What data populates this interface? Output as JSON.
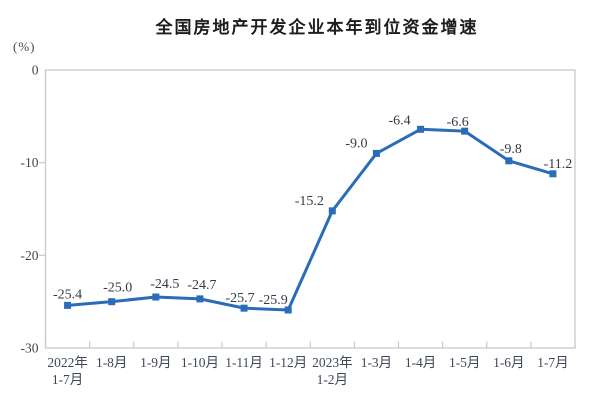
{
  "chart_data": {
    "type": "line",
    "title": "全国房地产开发企业本年到位资金增速",
    "ylabel": "(%)",
    "xlabel": "",
    "categories": [
      [
        "2022年",
        "1-7月"
      ],
      [
        "1-8月"
      ],
      [
        "1-9月"
      ],
      [
        "1-10月"
      ],
      [
        "1-11月"
      ],
      [
        "1-12月"
      ],
      [
        "2023年",
        "1-2月"
      ],
      [
        "1-3月"
      ],
      [
        "1-4月"
      ],
      [
        "1-5月"
      ],
      [
        "1-6月"
      ],
      [
        "1-7月"
      ]
    ],
    "values": [
      -25.4,
      -25.0,
      -24.5,
      -24.7,
      -25.7,
      -25.9,
      -15.2,
      -9.0,
      -6.4,
      -6.6,
      -9.8,
      -11.2
    ],
    "point_labels": [
      "-25.4",
      "-25.0",
      "-24.5",
      "-24.7",
      "-25.7",
      "-25.9",
      "-15.2",
      "-9.0",
      "-6.4",
      "-6.6",
      "-9.8",
      "-11.2"
    ],
    "y_ticks": [
      "0",
      "-10",
      "-20",
      "-30"
    ],
    "ylim": [
      -30,
      0
    ],
    "grid": false,
    "legend": "none",
    "colors": {
      "line": "#2B6CB8",
      "marker": "#2B6CB8",
      "axis_text": "#3E4756",
      "point_label_text": "#333B46",
      "border": "#C8C8C8",
      "title_text": "#1D1D1D",
      "background": "#FFFFFF"
    }
  }
}
